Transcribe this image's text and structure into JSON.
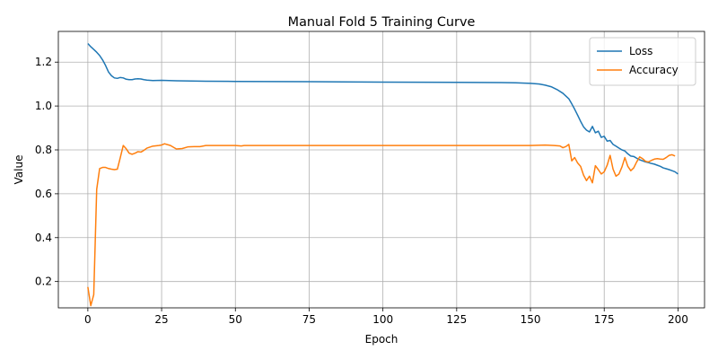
{
  "chart_data": {
    "type": "line",
    "title": "Manual Fold 5 Training Curve",
    "xlabel": "Epoch",
    "ylabel": "Value",
    "xlim": [
      -10,
      209
    ],
    "ylim": [
      0.08,
      1.34
    ],
    "xticks": [
      0,
      25,
      50,
      75,
      100,
      125,
      150,
      175,
      200
    ],
    "yticks": [
      0.2,
      0.4,
      0.6,
      0.8,
      1.0,
      1.2
    ],
    "grid": true,
    "legend_position": "top-right",
    "series": [
      {
        "name": "Loss",
        "color": "#1f77b4",
        "points": [
          [
            0,
            1.285
          ],
          [
            1,
            1.27
          ],
          [
            2,
            1.258
          ],
          [
            3,
            1.245
          ],
          [
            4,
            1.23
          ],
          [
            5,
            1.21
          ],
          [
            6,
            1.185
          ],
          [
            7,
            1.155
          ],
          [
            8,
            1.138
          ],
          [
            9,
            1.128
          ],
          [
            10,
            1.126
          ],
          [
            11,
            1.13
          ],
          [
            12,
            1.128
          ],
          [
            13,
            1.122
          ],
          [
            14,
            1.12
          ],
          [
            15,
            1.12
          ],
          [
            16,
            1.123
          ],
          [
            17,
            1.124
          ],
          [
            18,
            1.123
          ],
          [
            19,
            1.12
          ],
          [
            20,
            1.118
          ],
          [
            22,
            1.116
          ],
          [
            25,
            1.117
          ],
          [
            30,
            1.115
          ],
          [
            40,
            1.113
          ],
          [
            50,
            1.112
          ],
          [
            75,
            1.111
          ],
          [
            100,
            1.109
          ],
          [
            125,
            1.108
          ],
          [
            140,
            1.107
          ],
          [
            145,
            1.106
          ],
          [
            150,
            1.103
          ],
          [
            153,
            1.1
          ],
          [
            155,
            1.095
          ],
          [
            157,
            1.088
          ],
          [
            159,
            1.075
          ],
          [
            161,
            1.058
          ],
          [
            163,
            1.033
          ],
          [
            164,
            1.01
          ],
          [
            165,
            0.985
          ],
          [
            166,
            0.958
          ],
          [
            167,
            0.93
          ],
          [
            168,
            0.905
          ],
          [
            169,
            0.89
          ],
          [
            170,
            0.882
          ],
          [
            171,
            0.907
          ],
          [
            172,
            0.878
          ],
          [
            173,
            0.885
          ],
          [
            174,
            0.857
          ],
          [
            175,
            0.862
          ],
          [
            176,
            0.84
          ],
          [
            177,
            0.843
          ],
          [
            178,
            0.825
          ],
          [
            179,
            0.817
          ],
          [
            180,
            0.808
          ],
          [
            181,
            0.8
          ],
          [
            182,
            0.795
          ],
          [
            183,
            0.782
          ],
          [
            184,
            0.772
          ],
          [
            185,
            0.77
          ],
          [
            186,
            0.762
          ],
          [
            187,
            0.755
          ],
          [
            188,
            0.75
          ],
          [
            189,
            0.745
          ],
          [
            190,
            0.742
          ],
          [
            191,
            0.738
          ],
          [
            192,
            0.735
          ],
          [
            193,
            0.73
          ],
          [
            194,
            0.725
          ],
          [
            195,
            0.718
          ],
          [
            196,
            0.714
          ],
          [
            197,
            0.71
          ],
          [
            198,
            0.705
          ],
          [
            199,
            0.7
          ],
          [
            200,
            0.69
          ]
        ]
      },
      {
        "name": "Accuracy",
        "color": "#ff7f0e",
        "points": [
          [
            0,
            0.175
          ],
          [
            1,
            0.09
          ],
          [
            2,
            0.14
          ],
          [
            3,
            0.62
          ],
          [
            4,
            0.715
          ],
          [
            5,
            0.72
          ],
          [
            6,
            0.72
          ],
          [
            7,
            0.715
          ],
          [
            8,
            0.712
          ],
          [
            9,
            0.71
          ],
          [
            10,
            0.712
          ],
          [
            11,
            0.765
          ],
          [
            12,
            0.82
          ],
          [
            13,
            0.805
          ],
          [
            14,
            0.785
          ],
          [
            15,
            0.78
          ],
          [
            16,
            0.785
          ],
          [
            17,
            0.792
          ],
          [
            18,
            0.79
          ],
          [
            19,
            0.798
          ],
          [
            20,
            0.808
          ],
          [
            22,
            0.817
          ],
          [
            24,
            0.82
          ],
          [
            25,
            0.822
          ],
          [
            26,
            0.828
          ],
          [
            28,
            0.82
          ],
          [
            30,
            0.804
          ],
          [
            32,
            0.806
          ],
          [
            34,
            0.814
          ],
          [
            36,
            0.815
          ],
          [
            38,
            0.815
          ],
          [
            40,
            0.82
          ],
          [
            45,
            0.82
          ],
          [
            50,
            0.82
          ],
          [
            52,
            0.818
          ],
          [
            53,
            0.82
          ],
          [
            60,
            0.82
          ],
          [
            75,
            0.82
          ],
          [
            100,
            0.82
          ],
          [
            125,
            0.82
          ],
          [
            150,
            0.82
          ],
          [
            155,
            0.822
          ],
          [
            158,
            0.82
          ],
          [
            160,
            0.818
          ],
          [
            161,
            0.81
          ],
          [
            162,
            0.815
          ],
          [
            163,
            0.825
          ],
          [
            164,
            0.75
          ],
          [
            165,
            0.765
          ],
          [
            166,
            0.74
          ],
          [
            167,
            0.725
          ],
          [
            168,
            0.685
          ],
          [
            169,
            0.66
          ],
          [
            170,
            0.68
          ],
          [
            171,
            0.65
          ],
          [
            172,
            0.728
          ],
          [
            173,
            0.71
          ],
          [
            174,
            0.69
          ],
          [
            175,
            0.7
          ],
          [
            176,
            0.73
          ],
          [
            177,
            0.775
          ],
          [
            178,
            0.712
          ],
          [
            179,
            0.68
          ],
          [
            180,
            0.69
          ],
          [
            181,
            0.722
          ],
          [
            182,
            0.765
          ],
          [
            183,
            0.725
          ],
          [
            184,
            0.705
          ],
          [
            185,
            0.718
          ],
          [
            186,
            0.745
          ],
          [
            187,
            0.768
          ],
          [
            188,
            0.76
          ],
          [
            189,
            0.748
          ],
          [
            190,
            0.745
          ],
          [
            191,
            0.752
          ],
          [
            192,
            0.758
          ],
          [
            193,
            0.76
          ],
          [
            194,
            0.758
          ],
          [
            195,
            0.757
          ],
          [
            196,
            0.765
          ],
          [
            197,
            0.775
          ],
          [
            198,
            0.778
          ],
          [
            199,
            0.772
          ]
        ]
      }
    ]
  }
}
